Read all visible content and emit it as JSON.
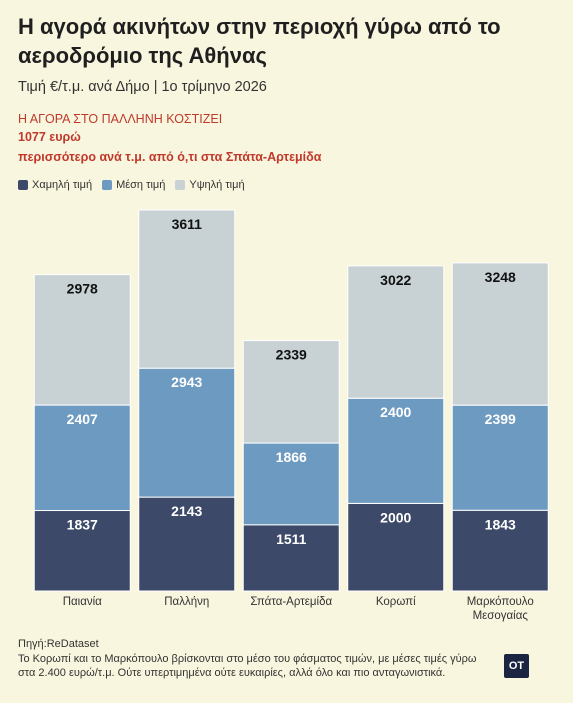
{
  "header": {
    "title": "Η αγορά ακινήτων στην περιοχή γύρω από το αεροδρόμιο της Αθήνας",
    "subtitle": "Τιμή €/τ.μ. ανά Δήμο | 1ο τρίμηνο 2026",
    "highlight_line1": "Η ΑΓΟΡΑ ΣΤΟ ΠΑΛΛΗΝΗ ΚΟΣΤΙΖΕΙ",
    "highlight_line2": "1077 ευρώ",
    "highlight_line3": "περισσότερο ανά τ.μ. από ό,τι στα Σπάτα-Αρτεμίδα"
  },
  "colors": {
    "low": "#3c4968",
    "mid": "#6d9ac1",
    "high": "#c8d2d5",
    "highlight": "#c0392b",
    "background": "#f9f6df"
  },
  "chart_data": {
    "type": "bar",
    "stacked": true,
    "categories": [
      "Παιανία",
      "Παλλήνη",
      "Σπάτα-Αρτεμίδα",
      "Κορωπί",
      "Μαρκόπουλο Μεσογαίας"
    ],
    "series": [
      {
        "name": "Χαμηλή τιμή",
        "values": [
          1837,
          2143,
          1511,
          2000,
          1843
        ]
      },
      {
        "name": "Μέση τιμή",
        "values": [
          2407,
          2943,
          1866,
          2400,
          2399
        ]
      },
      {
        "name": "Υψηλή τιμή",
        "values": [
          2978,
          3611,
          2339,
          3022,
          3248
        ]
      }
    ],
    "legend": "top-left"
  },
  "footer": {
    "source": "Πηγή:ReDataset",
    "note": "Το Κορωπί και το Μαρκόπουλο βρίσκονται στο μέσο του φάσματος τιμών, με μέσες τιμές γύρω στα 2.400 ευρώ/τ.μ. Ούτε υπερτιμημένα ούτε ευκαιρίες, αλλά όλο και πιο ανταγωνιστικά.",
    "logo_text": "OT"
  }
}
